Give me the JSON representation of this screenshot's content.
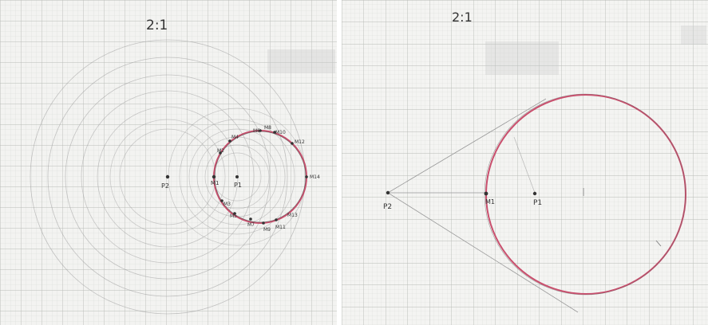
{
  "left": {
    "title": "2:1",
    "points": {
      "p1": "P1",
      "p2": "P2",
      "m1": "M1"
    },
    "markers": [
      "M2",
      "M4",
      "M6",
      "M8",
      "M10",
      "M12",
      "M14",
      "M13",
      "M11",
      "M9",
      "M7",
      "M5",
      "M3"
    ]
  },
  "right": {
    "title": "2:1",
    "points": {
      "p1": "P1",
      "p2": "P2",
      "m1": "M1"
    }
  },
  "colors": {
    "paper": "#f3f3f1",
    "grid_minor": "#d7d9d6",
    "grid_major": "#b9bcb8",
    "pencil": "#8a8a8a",
    "locus": "#c94f6d"
  }
}
